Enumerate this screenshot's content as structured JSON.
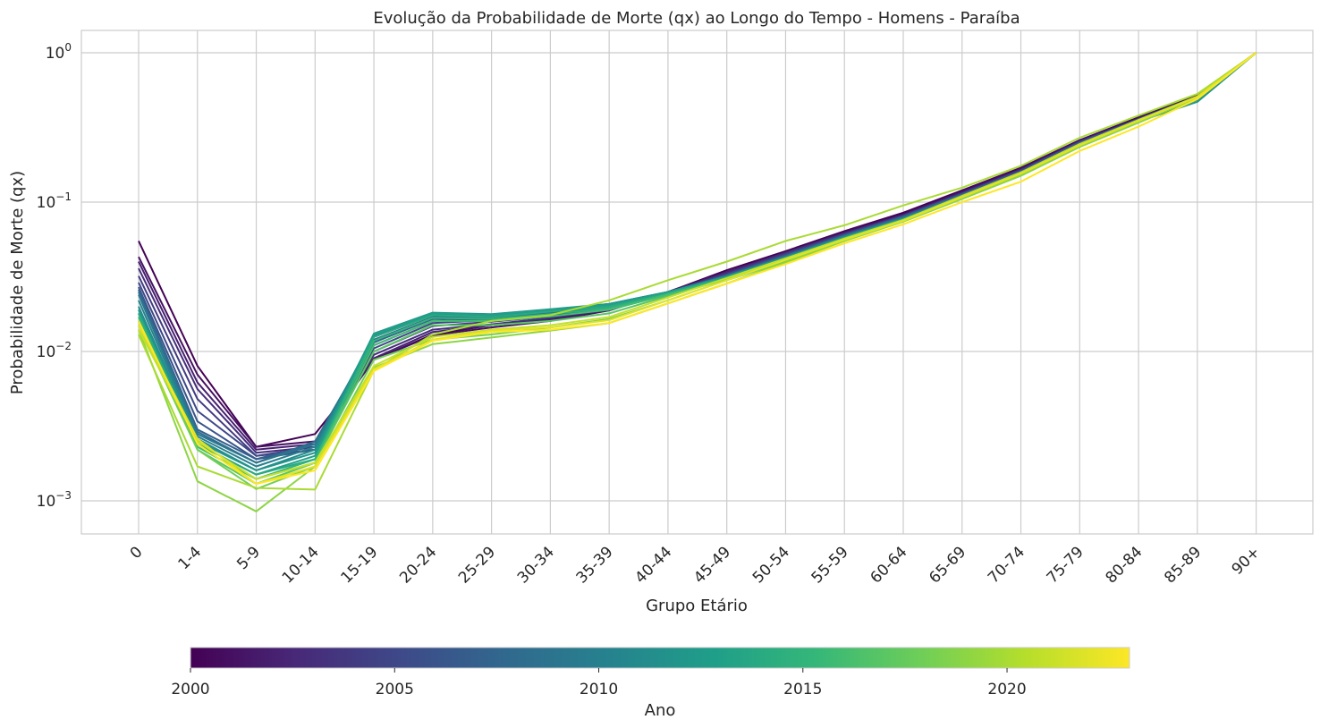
{
  "chart_data": {
    "type": "line",
    "title": "Evolução da Probabilidade de Morte (qx) ao Longo do Tempo - Homens - Paraíba",
    "xlabel": "Grupo Etário",
    "ylabel": "Probabilidade de Morte (qx)",
    "yscale": "log",
    "ylim": [
      0.0006,
      1.4
    ],
    "y_tick_labels": [
      {
        "base": "10",
        "exp": "0",
        "value": 1
      },
      {
        "base": "10",
        "exp": "−1",
        "value": 0.1
      },
      {
        "base": "10",
        "exp": "−2",
        "value": 0.01
      },
      {
        "base": "10",
        "exp": "−3",
        "value": 0.001
      }
    ],
    "grid": true,
    "categories": [
      "0",
      "1-4",
      "5-9",
      "10-14",
      "15-19",
      "20-24",
      "25-29",
      "30-34",
      "35-39",
      "40-44",
      "45-49",
      "50-54",
      "55-59",
      "60-64",
      "65-69",
      "70-74",
      "75-79",
      "80-84",
      "85-89",
      "90+"
    ],
    "colormap": "viridis",
    "colorbar": {
      "label": "Ano",
      "min": 2000,
      "max": 2023,
      "ticks": [
        "2000",
        "2005",
        "2010",
        "2015",
        "2020"
      ],
      "placement": "bottom"
    },
    "series": [
      {
        "year": 2000,
        "values": [
          0.055,
          0.008,
          0.0023,
          0.0028,
          0.0088,
          0.013,
          0.015,
          0.0162,
          0.019,
          0.025,
          0.035,
          0.047,
          0.064,
          0.085,
          0.12,
          0.17,
          0.26,
          0.37,
          0.52,
          1.0
        ]
      },
      {
        "year": 2001,
        "values": [
          0.043,
          0.007,
          0.0023,
          0.0025,
          0.0088,
          0.0128,
          0.0145,
          0.016,
          0.0188,
          0.025,
          0.034,
          0.046,
          0.063,
          0.083,
          0.118,
          0.168,
          0.258,
          0.365,
          0.515,
          1.0
        ]
      },
      {
        "year": 2002,
        "values": [
          0.04,
          0.0062,
          0.0022,
          0.0024,
          0.009,
          0.0135,
          0.015,
          0.0165,
          0.019,
          0.025,
          0.034,
          0.046,
          0.062,
          0.082,
          0.116,
          0.165,
          0.255,
          0.36,
          0.51,
          1.0
        ]
      },
      {
        "year": 2003,
        "values": [
          0.036,
          0.0056,
          0.0021,
          0.0023,
          0.0095,
          0.014,
          0.0152,
          0.0168,
          0.0192,
          0.0248,
          0.0335,
          0.0455,
          0.0615,
          0.0815,
          0.115,
          0.164,
          0.254,
          0.36,
          0.51,
          1.0
        ]
      },
      {
        "year": 2004,
        "values": [
          0.032,
          0.0048,
          0.002,
          0.0023,
          0.01,
          0.0148,
          0.0158,
          0.0172,
          0.0195,
          0.0248,
          0.033,
          0.045,
          0.061,
          0.081,
          0.114,
          0.163,
          0.253,
          0.36,
          0.51,
          1.0
        ]
      },
      {
        "year": 2005,
        "values": [
          0.029,
          0.004,
          0.002,
          0.0022,
          0.0105,
          0.0155,
          0.0162,
          0.0175,
          0.0196,
          0.0248,
          0.0328,
          0.0445,
          0.0605,
          0.0805,
          0.1135,
          0.162,
          0.252,
          0.36,
          0.51,
          1.0
        ]
      },
      {
        "year": 2006,
        "values": [
          0.027,
          0.0034,
          0.0019,
          0.0022,
          0.011,
          0.016,
          0.0165,
          0.0178,
          0.0198,
          0.0248,
          0.0325,
          0.044,
          0.06,
          0.08,
          0.113,
          0.161,
          0.25,
          0.358,
          0.508,
          1.0
        ]
      },
      {
        "year": 2007,
        "values": [
          0.026,
          0.003,
          0.0019,
          0.0024,
          0.0115,
          0.0165,
          0.0168,
          0.018,
          0.02,
          0.0248,
          0.0322,
          0.0438,
          0.0598,
          0.0795,
          0.1125,
          0.16,
          0.248,
          0.356,
          0.505,
          1.0
        ]
      },
      {
        "year": 2008,
        "values": [
          0.025,
          0.0029,
          0.0018,
          0.0025,
          0.012,
          0.017,
          0.017,
          0.0182,
          0.0202,
          0.0248,
          0.032,
          0.0435,
          0.0595,
          0.079,
          0.112,
          0.159,
          0.246,
          0.354,
          0.5,
          1.0
        ]
      },
      {
        "year": 2009,
        "values": [
          0.024,
          0.0028,
          0.0018,
          0.0024,
          0.0125,
          0.0175,
          0.0172,
          0.0185,
          0.0205,
          0.025,
          0.032,
          0.0432,
          0.059,
          0.0785,
          0.111,
          0.158,
          0.244,
          0.352,
          0.495,
          1.0
        ]
      },
      {
        "year": 2010,
        "values": [
          0.022,
          0.0027,
          0.0017,
          0.0023,
          0.0128,
          0.0178,
          0.0175,
          0.0188,
          0.0208,
          0.025,
          0.0318,
          0.043,
          0.0588,
          0.078,
          0.11,
          0.157,
          0.242,
          0.35,
          0.49,
          1.0
        ]
      },
      {
        "year": 2011,
        "values": [
          0.02,
          0.0026,
          0.0016,
          0.0022,
          0.013,
          0.018,
          0.0176,
          0.019,
          0.0208,
          0.025,
          0.0318,
          0.0428,
          0.0585,
          0.0775,
          0.1095,
          0.156,
          0.241,
          0.348,
          0.485,
          1.0
        ]
      },
      {
        "year": 2012,
        "values": [
          0.019,
          0.0025,
          0.0016,
          0.0021,
          0.0132,
          0.0182,
          0.0178,
          0.0192,
          0.0208,
          0.025,
          0.0318,
          0.0425,
          0.058,
          0.077,
          0.109,
          0.1555,
          0.24,
          0.347,
          0.47,
          1.0
        ]
      },
      {
        "year": 2013,
        "values": [
          0.018,
          0.0024,
          0.0015,
          0.002,
          0.013,
          0.018,
          0.0175,
          0.019,
          0.0205,
          0.0248,
          0.0315,
          0.0422,
          0.0578,
          0.0768,
          0.1085,
          0.155,
          0.24,
          0.346,
          0.49,
          1.0
        ]
      },
      {
        "year": 2014,
        "values": [
          0.018,
          0.0024,
          0.0015,
          0.0019,
          0.0125,
          0.0175,
          0.017,
          0.0185,
          0.02,
          0.0245,
          0.0312,
          0.042,
          0.0575,
          0.0765,
          0.108,
          0.1545,
          0.239,
          0.345,
          0.495,
          1.0
        ]
      },
      {
        "year": 2015,
        "values": [
          0.017,
          0.0023,
          0.0014,
          0.0019,
          0.0118,
          0.0168,
          0.0165,
          0.0178,
          0.0195,
          0.0242,
          0.031,
          0.0418,
          0.0572,
          0.0762,
          0.1078,
          0.154,
          0.238,
          0.344,
          0.5,
          1.0
        ]
      },
      {
        "year": 2016,
        "values": [
          0.016,
          0.0023,
          0.0014,
          0.0018,
          0.011,
          0.016,
          0.016,
          0.0172,
          0.019,
          0.024,
          0.0308,
          0.0415,
          0.057,
          0.076,
          0.1075,
          0.154,
          0.238,
          0.344,
          0.5,
          1.0
        ]
      },
      {
        "year": 2017,
        "values": [
          0.016,
          0.0022,
          0.0013,
          0.0018,
          0.01,
          0.015,
          0.015,
          0.016,
          0.018,
          0.0235,
          0.0305,
          0.041,
          0.0565,
          0.0755,
          0.107,
          0.153,
          0.237,
          0.343,
          0.5,
          1.0
        ]
      },
      {
        "year": 2018,
        "values": [
          0.015,
          0.0022,
          0.0012,
          0.0017,
          0.0088,
          0.012,
          0.013,
          0.0145,
          0.0165,
          0.022,
          0.03,
          0.04,
          0.056,
          0.075,
          0.106,
          0.152,
          0.236,
          0.342,
          0.5,
          1.0
        ]
      },
      {
        "year": 2019,
        "values": [
          0.014,
          0.00135,
          0.00085,
          0.0017,
          0.0078,
          0.0112,
          0.0124,
          0.0138,
          0.0155,
          0.021,
          0.0285,
          0.0395,
          0.055,
          0.074,
          0.105,
          0.15,
          0.234,
          0.34,
          0.5,
          1.0
        ]
      },
      {
        "year": 2020,
        "values": [
          0.013,
          0.0017,
          0.00122,
          0.00119,
          0.0075,
          0.013,
          0.016,
          0.0175,
          0.022,
          0.03,
          0.04,
          0.055,
          0.07,
          0.095,
          0.125,
          0.175,
          0.27,
          0.38,
          0.53,
          1.0
        ]
      },
      {
        "year": 2021,
        "values": [
          0.014,
          0.0025,
          0.0014,
          0.0018,
          0.008,
          0.0125,
          0.014,
          0.015,
          0.017,
          0.023,
          0.031,
          0.042,
          0.057,
          0.076,
          0.11,
          0.158,
          0.245,
          0.355,
          0.51,
          1.0
        ]
      },
      {
        "year": 2022,
        "values": [
          0.015,
          0.0026,
          0.0013,
          0.0017,
          0.0076,
          0.012,
          0.0138,
          0.0145,
          0.0162,
          0.022,
          0.03,
          0.041,
          0.056,
          0.075,
          0.108,
          0.155,
          0.24,
          0.35,
          0.505,
          1.0
        ]
      },
      {
        "year": 2023,
        "values": [
          0.016,
          0.0024,
          0.0013,
          0.0016,
          0.0074,
          0.0118,
          0.0135,
          0.014,
          0.0155,
          0.021,
          0.0285,
          0.0385,
          0.053,
          0.071,
          0.1,
          0.137,
          0.22,
          0.32,
          0.49,
          1.0
        ]
      }
    ]
  }
}
